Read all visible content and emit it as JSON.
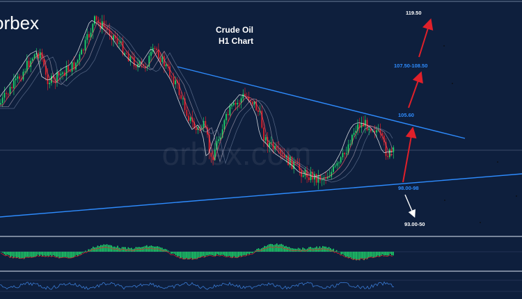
{
  "brand": {
    "logo_text": "orbex",
    "watermark_text": "orbex.com"
  },
  "chart_data": {
    "type": "candlestick",
    "title": "Crude Oil",
    "subtitle": "H1 Chart",
    "instrument": "Crude Oil",
    "timeframe": "H1",
    "indicators": [
      "moving averages",
      "MACD histogram",
      "oscillator"
    ],
    "price_levels": [
      {
        "label": "119.50",
        "value": 119.5,
        "color": "#ffffff"
      },
      {
        "label": "107.50-108.50",
        "value": 108.0,
        "color": "#2e8cff"
      },
      {
        "label": "105.60",
        "value": 105.6,
        "color": "#2e8cff"
      },
      {
        "label": "98.00-98",
        "value": 98.0,
        "color": "#2e8cff"
      },
      {
        "label": "93.00-50",
        "value": 93.25,
        "color": "#ffffff"
      }
    ],
    "trendlines": [
      "descending resistance",
      "ascending support"
    ],
    "projections": [
      {
        "direction": "up",
        "color": "#e0202a"
      },
      {
        "direction": "up",
        "color": "#e0202a"
      },
      {
        "direction": "up",
        "color": "#e0202a"
      },
      {
        "direction": "down",
        "color": "#ffffff"
      }
    ],
    "colors": {
      "background": "#0e1f3d",
      "up_candle": "#1fd36a",
      "down_candle": "#e0202a",
      "trendline": "#2e8cff",
      "histogram": "#1fd36a"
    }
  }
}
